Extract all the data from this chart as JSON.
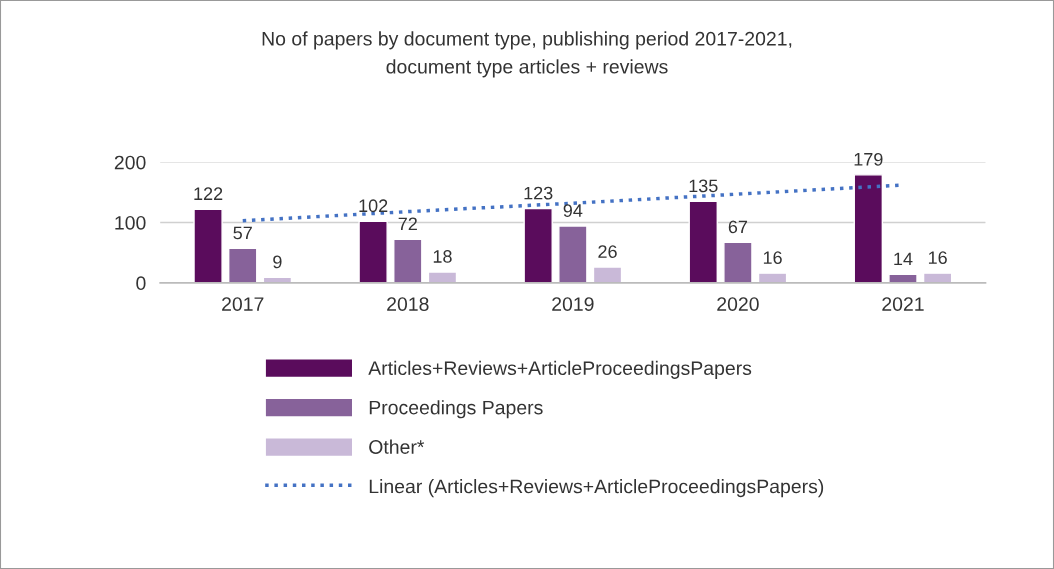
{
  "chart_data": {
    "type": "bar",
    "title": "No of papers by document type, publishing period 2017-2021,\ndocument type articles + reviews",
    "categories": [
      "2017",
      "2018",
      "2019",
      "2020",
      "2021"
    ],
    "series": [
      {
        "name": "Articles+Reviews+ArticleProceedingsPapers",
        "color": "#5a0c5c",
        "values": [
          122,
          102,
          123,
          135,
          179
        ],
        "value_labels": [
          "122",
          "102",
          "123",
          "135",
          "179"
        ]
      },
      {
        "name": "Proceedings Papers",
        "color": "#87629a",
        "values": [
          57,
          72,
          94,
          67,
          14
        ],
        "value_labels": [
          "57",
          "72",
          "94",
          "67",
          "14"
        ]
      },
      {
        "name": "Other*",
        "color": "#c9b9d8",
        "values": [
          9,
          18,
          26,
          16,
          16
        ],
        "value_labels": [
          "9",
          "18",
          "26",
          "16",
          "16"
        ]
      },
      {
        "name": "Linear (Articles+Reviews+ArticleProceedingsPapers)",
        "type": "line",
        "color": "#4472c4",
        "line_style": "dotted",
        "marker": "none",
        "values": [
          103,
          118,
          132,
          147,
          162
        ]
      }
    ],
    "ylim": [
      0,
      200
    ],
    "yticks": [
      0,
      100,
      200
    ],
    "grid": "y",
    "legend": "bottom"
  }
}
